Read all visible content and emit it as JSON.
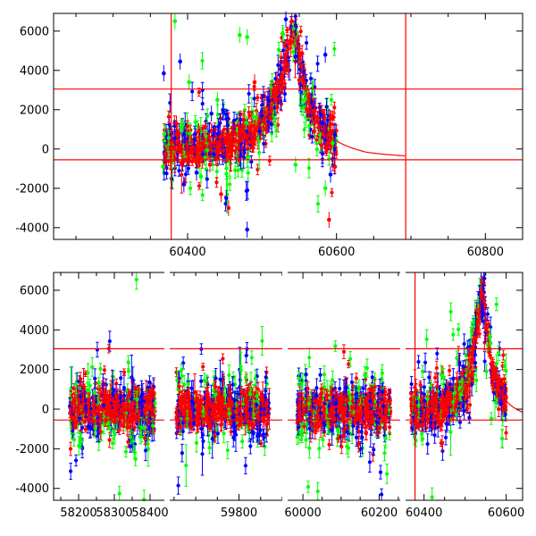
{
  "chart_data": [
    {
      "type": "scatter",
      "title": "",
      "xlabel": "",
      "ylabel": "",
      "xlim": [
        60220,
        60850
      ],
      "ylim": [
        -4600,
        6900
      ],
      "grid": false,
      "x_ticks": [
        60400,
        60600,
        60800
      ],
      "y_ticks": [
        -4000,
        -2000,
        0,
        2000,
        4000,
        6000
      ],
      "hlines": [
        3050,
        -550
      ],
      "vlines": [
        60378,
        60693
      ],
      "series": [
        {
          "color": "#0000ff",
          "values": [
            [
              60368,
              3850
            ],
            [
              60390,
              4450
            ],
            [
              60395,
              -1800
            ],
            [
              60412,
              -1200
            ],
            [
              60432,
              1800
            ],
            [
              60452,
              -2500
            ],
            [
              60480,
              -4100
            ],
            [
              60497,
              900
            ],
            [
              60512,
              3100
            ],
            [
              60532,
              6600
            ],
            [
              60545,
              4700
            ],
            [
              60556,
              3900
            ],
            [
              60566,
              2300
            ],
            [
              60578,
              1300
            ],
            [
              60585,
              4800
            ],
            [
              60592,
              -1300
            ],
            [
              60598,
              700
            ]
          ]
        },
        {
          "color": "#00ff00",
          "values": [
            [
              60367,
              -900
            ],
            [
              60383,
              6500
            ],
            [
              60393,
              1200
            ],
            [
              60402,
              3400
            ],
            [
              60418,
              -1400
            ],
            [
              60440,
              2500
            ],
            [
              60470,
              5800
            ],
            [
              60480,
              5700
            ],
            [
              60492,
              1600
            ],
            [
              60512,
              3100
            ],
            [
              60545,
              -800
            ],
            [
              60560,
              2900
            ],
            [
              60585,
              -2000
            ],
            [
              60595,
              300
            ]
          ]
        },
        {
          "color": "#ff0000",
          "values": [
            [
              60370,
              -250
            ],
            [
              60385,
              1300
            ],
            [
              60400,
              -200
            ],
            [
              60415,
              900
            ],
            [
              60430,
              -800
            ],
            [
              60445,
              -2300
            ],
            [
              60455,
              -3000
            ],
            [
              60470,
              400
            ],
            [
              60490,
              3400
            ],
            [
              60505,
              1000
            ],
            [
              60520,
              2800
            ],
            [
              60535,
              4000
            ],
            [
              60540,
              6500
            ],
            [
              60550,
              3500
            ],
            [
              60560,
              2000
            ],
            [
              60570,
              900
            ],
            [
              60580,
              200
            ],
            [
              60590,
              -3600
            ],
            [
              60598,
              -900
            ]
          ]
        }
      ],
      "model_curve": [
        [
          60370,
          -300
        ],
        [
          60440,
          -200
        ],
        [
          60480,
          300
        ],
        [
          60500,
          1100
        ],
        [
          60520,
          2800
        ],
        [
          60540,
          6200
        ],
        [
          60555,
          3300
        ],
        [
          60575,
          900
        ],
        [
          60600,
          0
        ],
        [
          60625,
          -350
        ],
        [
          60650,
          -480
        ],
        [
          60693,
          -550
        ]
      ]
    },
    {
      "type": "scatter",
      "title": "",
      "xlabel": "",
      "ylabel": "",
      "ylim": [
        -4600,
        6900
      ],
      "grid": false,
      "y_ticks": [
        -4000,
        -2000,
        0,
        2000,
        4000,
        6000
      ],
      "hlines": [
        3050,
        -550
      ],
      "segments": [
        {
          "xlim": [
            58130,
            58440
          ],
          "x_ticks": [
            58200,
            58300,
            58400
          ],
          "data_range": [
            58175,
            58415
          ],
          "vlines": []
        },
        {
          "xlim": [
            59640,
            59900
          ],
          "x_ticks": [
            59800
          ],
          "data_range": [
            59655,
            59870
          ],
          "vlines": []
        },
        {
          "xlim": [
            59960,
            60255
          ],
          "x_ticks": [
            60000,
            60200
          ],
          "data_range": [
            59985,
            60230
          ],
          "vlines": []
        },
        {
          "xlim": [
            60355,
            60640
          ],
          "x_ticks": [
            60400,
            60600
          ],
          "data_range": [
            60368,
            60600
          ],
          "vlines": [
            60378
          ]
        }
      ]
    }
  ],
  "colors": {
    "blue": "#0000ff",
    "green": "#00ff00",
    "red": "#ff0000",
    "frame": "#000000"
  }
}
